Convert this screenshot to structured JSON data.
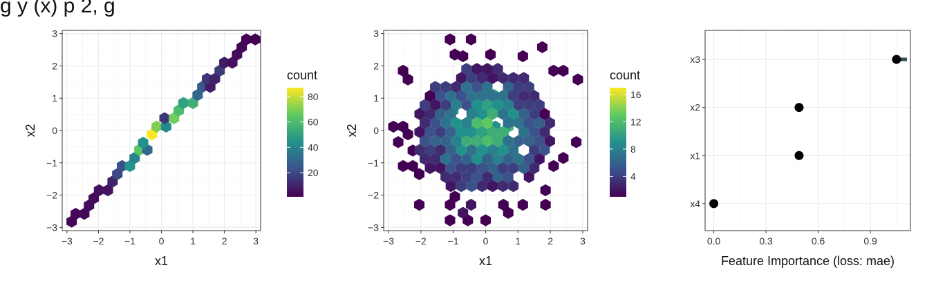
{
  "title_fragment": "g       y    (x)          p      2,  g",
  "chart_data": [
    {
      "type": "heatmap",
      "subtype": "hexbin",
      "xlabel": "x1",
      "ylabel": "x2",
      "xlim": [
        -3.15,
        3.15
      ],
      "ylim": [
        -3.1,
        3.1
      ],
      "xticks": [
        -3,
        -2,
        -1,
        0,
        1,
        2,
        3
      ],
      "yticks": [
        -3,
        -2,
        -1,
        0,
        1,
        2,
        3
      ],
      "legend": {
        "title": "count",
        "ticks": [
          20,
          40,
          60,
          80
        ],
        "range": [
          1,
          87
        ],
        "placement": "right"
      },
      "colormap": [
        "#440154",
        "#3b528b",
        "#21918c",
        "#5ec962",
        "#fde725"
      ],
      "grid": true,
      "cells": [
        {
          "x": -2.85,
          "y": -2.82,
          "count": 2
        },
        {
          "x": -2.72,
          "y": -2.58,
          "count": 2
        },
        {
          "x": -2.45,
          "y": -2.58,
          "count": 3
        },
        {
          "x": -2.3,
          "y": -2.32,
          "count": 4
        },
        {
          "x": -2.15,
          "y": -2.1,
          "count": 4
        },
        {
          "x": -1.98,
          "y": -1.85,
          "count": 5
        },
        {
          "x": -1.7,
          "y": -1.85,
          "count": 6
        },
        {
          "x": -1.55,
          "y": -1.58,
          "count": 10
        },
        {
          "x": -1.4,
          "y": -1.35,
          "count": 20
        },
        {
          "x": -1.25,
          "y": -1.1,
          "count": 22
        },
        {
          "x": -1.0,
          "y": -1.1,
          "count": 45
        },
        {
          "x": -0.85,
          "y": -0.85,
          "count": 40
        },
        {
          "x": -0.7,
          "y": -0.6,
          "count": 65
        },
        {
          "x": -0.45,
          "y": -0.6,
          "count": 30
        },
        {
          "x": -0.58,
          "y": -0.38,
          "count": 45
        },
        {
          "x": -0.3,
          "y": -0.12,
          "count": 87
        },
        {
          "x": -0.15,
          "y": 0.12,
          "count": 70
        },
        {
          "x": 0.15,
          "y": 0.12,
          "count": 42
        },
        {
          "x": 0.1,
          "y": 0.38,
          "count": 15
        },
        {
          "x": 0.4,
          "y": 0.38,
          "count": 68
        },
        {
          "x": 0.55,
          "y": 0.62,
          "count": 60
        },
        {
          "x": 0.7,
          "y": 0.85,
          "count": 50
        },
        {
          "x": 1.0,
          "y": 0.85,
          "count": 55
        },
        {
          "x": 1.15,
          "y": 1.1,
          "count": 30
        },
        {
          "x": 1.3,
          "y": 1.35,
          "count": 25
        },
        {
          "x": 1.55,
          "y": 1.35,
          "count": 8
        },
        {
          "x": 1.45,
          "y": 1.6,
          "count": 15
        },
        {
          "x": 1.7,
          "y": 1.6,
          "count": 10
        },
        {
          "x": 1.85,
          "y": 1.85,
          "count": 16
        },
        {
          "x": 2.0,
          "y": 2.1,
          "count": 8
        },
        {
          "x": 2.25,
          "y": 2.1,
          "count": 5
        },
        {
          "x": 2.4,
          "y": 2.35,
          "count": 4
        },
        {
          "x": 2.55,
          "y": 2.58,
          "count": 3
        },
        {
          "x": 2.7,
          "y": 2.82,
          "count": 2
        },
        {
          "x": 2.98,
          "y": 2.82,
          "count": 1
        }
      ]
    },
    {
      "type": "heatmap",
      "subtype": "hexbin",
      "xlabel": "x1",
      "ylabel": "x2",
      "xlim": [
        -3.15,
        3.15
      ],
      "ylim": [
        -3.1,
        3.1
      ],
      "xticks": [
        -3,
        -2,
        -1,
        0,
        1,
        2,
        3
      ],
      "yticks": [
        -3,
        -2,
        -1,
        0,
        1,
        2,
        3
      ],
      "legend": {
        "title": "count",
        "ticks": [
          4,
          8,
          12,
          16
        ],
        "range": [
          1,
          17
        ],
        "placement": "right"
      },
      "colormap": [
        "#440154",
        "#3b528b",
        "#21918c",
        "#5ec962",
        "#fde725"
      ],
      "grid": true,
      "cells": [
        {
          "x": -2.85,
          "y": 0.12,
          "count": 1
        },
        {
          "x": -2.55,
          "y": 0.12,
          "count": 1
        },
        {
          "x": -2.7,
          "y": -0.36,
          "count": 1
        },
        {
          "x": -2.55,
          "y": 1.85,
          "count": 1
        },
        {
          "x": -2.4,
          "y": 1.58,
          "count": 1
        },
        {
          "x": -2.4,
          "y": -0.12,
          "count": 1
        },
        {
          "x": -2.25,
          "y": -0.62,
          "count": 1
        },
        {
          "x": -2.55,
          "y": -1.1,
          "count": 1
        },
        {
          "x": -2.25,
          "y": -1.1,
          "count": 1
        },
        {
          "x": -2.05,
          "y": -1.35,
          "count": 1
        },
        {
          "x": -2.05,
          "y": -2.3,
          "count": 1
        },
        {
          "x": -1.1,
          "y": -2.3,
          "count": 1
        },
        {
          "x": -0.95,
          "y": -2.05,
          "count": 1
        },
        {
          "x": -1.1,
          "y": -2.78,
          "count": 1
        },
        {
          "x": -0.55,
          "y": -2.78,
          "count": 1
        },
        {
          "x": -0.7,
          "y": -2.55,
          "count": 2
        },
        {
          "x": -0.45,
          "y": -2.3,
          "count": 2
        },
        {
          "x": 0.0,
          "y": -2.78,
          "count": 1
        },
        {
          "x": 0.7,
          "y": -2.55,
          "count": 1
        },
        {
          "x": 0.55,
          "y": -2.3,
          "count": 1
        },
        {
          "x": 1.15,
          "y": -2.3,
          "count": 1
        },
        {
          "x": 1.85,
          "y": -2.3,
          "count": 1
        },
        {
          "x": 1.85,
          "y": -1.85,
          "count": 1
        },
        {
          "x": 2.4,
          "y": -0.85,
          "count": 1
        },
        {
          "x": 2.1,
          "y": -1.1,
          "count": 1
        },
        {
          "x": 2.8,
          "y": -0.36,
          "count": 1
        },
        {
          "x": 2.85,
          "y": 1.58,
          "count": 1
        },
        {
          "x": 2.4,
          "y": 1.85,
          "count": 1
        },
        {
          "x": 2.1,
          "y": 1.85,
          "count": 1
        },
        {
          "x": 1.75,
          "y": 2.58,
          "count": 1
        },
        {
          "x": 1.15,
          "y": 2.3,
          "count": 1
        },
        {
          "x": -1.1,
          "y": 2.82,
          "count": 1
        },
        {
          "x": -0.45,
          "y": 2.82,
          "count": 1
        },
        {
          "x": -0.7,
          "y": 2.3,
          "count": 1
        },
        {
          "x": -0.95,
          "y": 2.35,
          "count": 1
        },
        {
          "x": 0.15,
          "y": 2.35,
          "count": 1
        },
        {
          "x": -0.6,
          "y": -0.12,
          "count": 5
        },
        {
          "x": -0.45,
          "y": 0.12,
          "count": 15
        },
        {
          "x": -0.15,
          "y": -0.36,
          "count": 8
        },
        {
          "x": 0.15,
          "y": -0.12,
          "count": 12
        },
        {
          "x": 0.3,
          "y": 0.12,
          "count": 9
        },
        {
          "x": 0.55,
          "y": -0.12,
          "count": 10
        },
        {
          "x": 0.7,
          "y": 0.12,
          "count": 11
        },
        {
          "x": 0.85,
          "y": 0.38,
          "count": 9
        },
        {
          "x": -0.3,
          "y": 0.62,
          "count": 7
        },
        {
          "x": -1.0,
          "y": 0.62,
          "count": 9
        },
        {
          "x": -0.85,
          "y": -0.36,
          "count": 8
        },
        {
          "x": 0.0,
          "y": -0.85,
          "count": 9
        },
        {
          "x": -0.45,
          "y": -1.1,
          "count": 7
        },
        {
          "x": 0.4,
          "y": -1.35,
          "count": 9
        },
        {
          "x": 0.25,
          "y": 1.1,
          "count": 10
        },
        {
          "x": 0.85,
          "y": 1.1,
          "count": 6
        },
        {
          "x": 1.3,
          "y": 0.15,
          "count": 7
        }
      ],
      "core_region": {
        "x": [
          -2.2,
          2.2
        ],
        "y": [
          -2.0,
          2.0
        ]
      }
    },
    {
      "type": "scatter",
      "subtype": "dot-interval",
      "xlabel": "Feature Importance (loss: mae)",
      "ylabel": "",
      "xlim": [
        -0.05,
        1.13
      ],
      "xticks": [
        "0.0",
        "0.3",
        "0.6",
        "0.9"
      ],
      "categories": [
        "x3",
        "x2",
        "x1",
        "x4"
      ],
      "values": [
        1.05,
        0.49,
        0.49,
        0.0
      ],
      "intervals": [
        [
          1.04,
          1.11
        ],
        [
          0.49,
          0.49
        ],
        [
          0.49,
          0.49
        ],
        [
          0.0,
          0.0
        ]
      ],
      "grid": true
    }
  ]
}
